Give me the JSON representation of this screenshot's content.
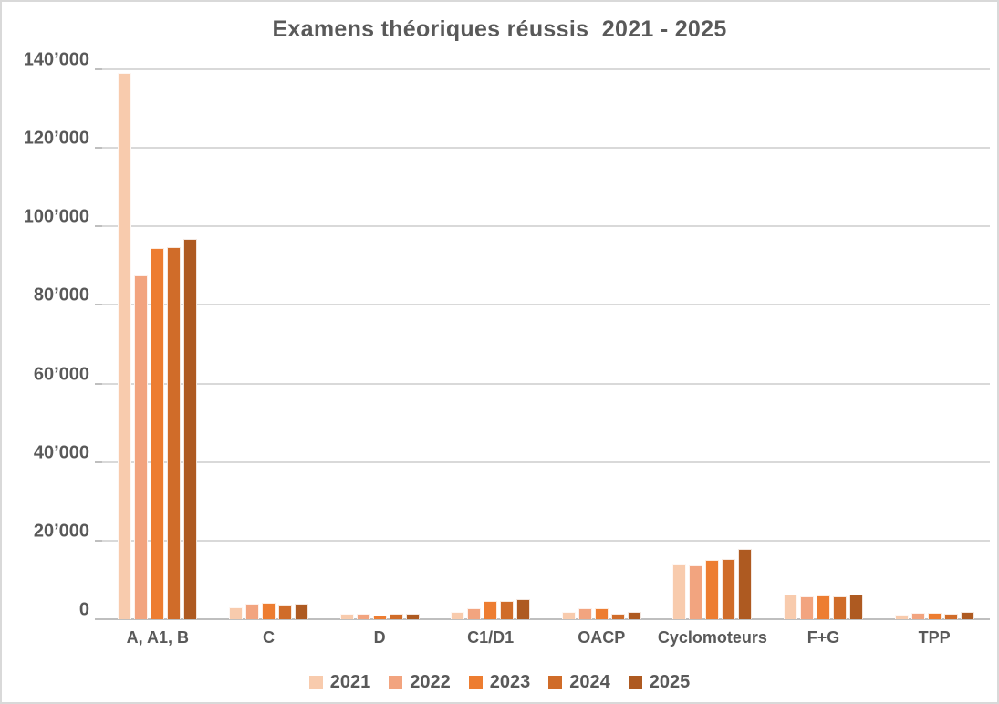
{
  "chart_data": {
    "type": "bar",
    "title": "Examens théoriques réussis  2021 - 2025",
    "categories": [
      "A, A1, B",
      "C",
      "D",
      "C1/D1",
      "OACP",
      "Cyclomoteurs",
      "F+G",
      "TPP"
    ],
    "series": [
      {
        "name": "2021",
        "color": "#F8CBAD",
        "values": [
          139000,
          3000,
          1400,
          1800,
          1800,
          14000,
          6200,
          1100
        ]
      },
      {
        "name": "2022",
        "color": "#F2A47F",
        "values": [
          87500,
          4000,
          1400,
          2900,
          2800,
          13800,
          5900,
          1700
        ]
      },
      {
        "name": "2023",
        "color": "#ED7D31",
        "values": [
          94500,
          4100,
          1000,
          4700,
          2800,
          15000,
          6100,
          1700
        ]
      },
      {
        "name": "2024",
        "color": "#D06C29",
        "values": [
          94800,
          3700,
          1300,
          4700,
          1400,
          15300,
          5900,
          1400
        ]
      },
      {
        "name": "2025",
        "color": "#AE5A21",
        "values": [
          96800,
          4000,
          1300,
          5000,
          1900,
          17800,
          6200,
          1900
        ]
      }
    ],
    "xlabel": "",
    "ylabel": "",
    "ylim": [
      0,
      140000
    ],
    "ytick_step": 20000,
    "ytick_labels": [
      "0",
      "20’000",
      "40’000",
      "60’000",
      "80’000",
      "100’000",
      "120’000",
      "140’000"
    ],
    "grid": true,
    "legend_position": "bottom",
    "colors": {
      "title_text": "#595959",
      "axis_text": "#595959",
      "gridline": "#d9d9d9",
      "axis_line": "#bfbfbf",
      "background": "#ffffff",
      "frame_border": "#d9d9d9"
    }
  }
}
